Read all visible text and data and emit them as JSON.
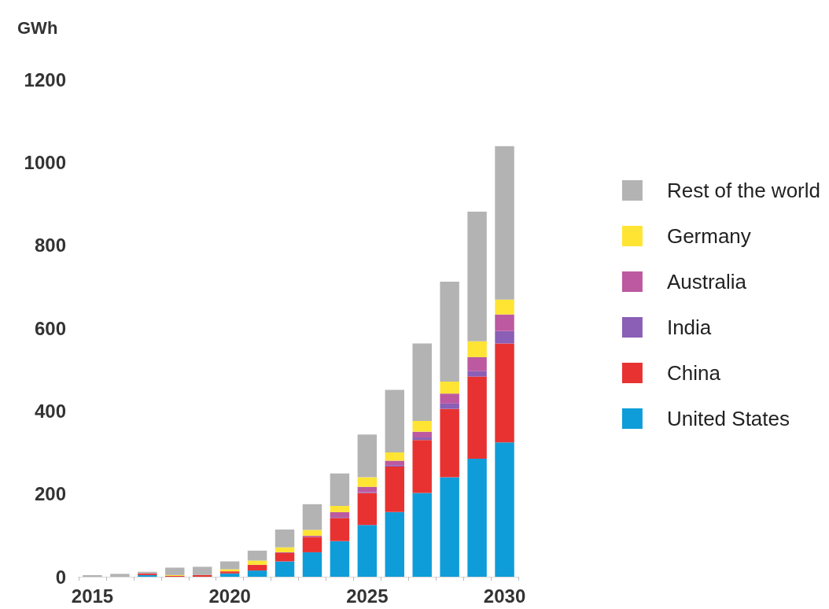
{
  "chart_data": {
    "type": "bar",
    "ylabel": "GWh",
    "stacked": true,
    "legend": "right",
    "grid": false,
    "categories": [
      "2015",
      null,
      null,
      null,
      null,
      "2020",
      null,
      null,
      null,
      null,
      "2025",
      null,
      null,
      null,
      null,
      "2030"
    ],
    "ylim": [
      0,
      1200
    ],
    "yticks": [
      0,
      200,
      400,
      600,
      800,
      1000,
      1200
    ],
    "series": [
      {
        "name": "United States",
        "color": "#0f9dd9",
        "values": [
          0,
          0,
          4,
          0,
          0,
          8,
          15,
          37,
          59,
          86,
          125,
          156,
          202,
          240,
          285,
          324
        ]
      },
      {
        "name": "China",
        "color": "#e83232",
        "values": [
          0,
          0,
          4,
          2,
          4,
          5,
          14,
          20,
          37,
          56,
          77,
          110,
          128,
          165,
          198,
          239
        ]
      },
      {
        "name": "India",
        "color": "#8a5fb5",
        "values": [
          0,
          0,
          0,
          0,
          0,
          0,
          0,
          0,
          null,
          2,
          2,
          3,
          6,
          13,
          13,
          30
        ]
      },
      {
        "name": "Australia",
        "color": "#bc59a0",
        "values": [
          0,
          0,
          0,
          0,
          0,
          0,
          0,
          2,
          3,
          12,
          13,
          11,
          14,
          24,
          34,
          40
        ]
      },
      {
        "name": "Germany",
        "color": "#ffe433",
        "values": [
          0,
          0,
          0,
          2,
          0,
          5,
          10,
          12,
          14,
          15,
          23,
          20,
          26,
          29,
          38,
          36
        ]
      },
      {
        "name": "Rest of the world",
        "color": "#b3b3b3",
        "values": [
          4,
          7,
          4,
          18,
          20,
          19,
          24,
          43,
          62,
          78,
          103,
          151,
          187,
          241,
          313,
          370
        ]
      }
    ]
  }
}
